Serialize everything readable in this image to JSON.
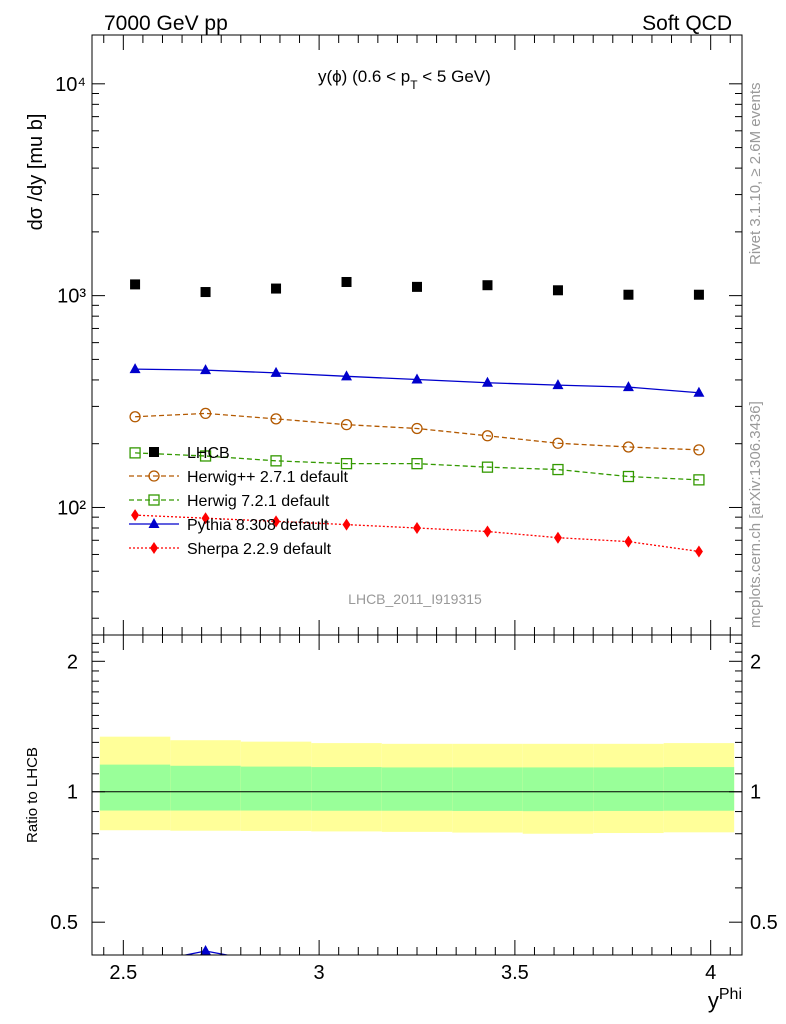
{
  "header": {
    "left": "7000 GeV pp",
    "right": "Soft QCD"
  },
  "side_labels": {
    "rivet": "Rivet 3.1.10, ≥ 2.6M events",
    "mcplots": "mcplots.cern.ch [arXiv:1306.3436]"
  },
  "chart_data": [
    {
      "type": "scatter",
      "title": "y(ϕ) (0.6 < p_T < 5 GeV)",
      "title_parts": {
        "main": "y(ϕ) (0.6 < p",
        "sub": "T",
        "tail": " < 5 GeV)"
      },
      "ylabel": "dσ /dy [mu b]",
      "yscale": "log",
      "ylim": [
        25,
        17000
      ],
      "xlim": [
        2.42,
        4.08
      ],
      "ytick_labels": [
        "10²",
        "10³",
        "10⁴"
      ],
      "analysis_id": "LHCB_2011_I919315",
      "legend_position": "center-left",
      "x": [
        2.53,
        2.71,
        2.89,
        3.07,
        3.25,
        3.43,
        3.61,
        3.79,
        3.97
      ],
      "series": [
        {
          "name": "LHCB",
          "style": "data",
          "marker": "square-filled",
          "color": "#000000",
          "values": [
            1130,
            1040,
            1080,
            1160,
            1100,
            1120,
            1060,
            1010,
            1010
          ]
        },
        {
          "name": "Herwig++ 2.7.1 default",
          "style": "dashed",
          "marker": "circle-open",
          "color": "#b35900",
          "values": [
            268,
            278,
            262,
            246,
            236,
            218,
            201,
            193,
            187
          ]
        },
        {
          "name": "Herwig 7.2.1 default",
          "style": "dashed",
          "marker": "square-open",
          "color": "#339900",
          "values": [
            181,
            175,
            166,
            161,
            161,
            155,
            151,
            140,
            135
          ]
        },
        {
          "name": "Pythia 8.308 default",
          "style": "solid",
          "marker": "triangle-filled",
          "color": "#0000cc",
          "values": [
            450,
            445,
            432,
            416,
            402,
            388,
            378,
            370,
            348
          ]
        },
        {
          "name": "Sherpa 2.2.9 default",
          "style": "dotted",
          "marker": "diamond-filled",
          "color": "#ff0000",
          "values": [
            92,
            89,
            86,
            83,
            80,
            77,
            72,
            69,
            62
          ]
        }
      ]
    },
    {
      "type": "line",
      "ylabel": "Ratio to LHCB",
      "xlabel": "y^Phi",
      "xlabel_parts": {
        "main": "y",
        "sup": "Phi"
      },
      "ylim": [
        0.42,
        2.3
      ],
      "yticks": [
        0.5,
        1,
        2
      ],
      "ytick_labels": [
        "0.5",
        "1",
        "2"
      ],
      "xticks": [
        2.5,
        3,
        3.5,
        4
      ],
      "xtick_labels": [
        "2.5",
        "3",
        "3.5",
        "4"
      ],
      "bands": {
        "inner_color": "#99ff99",
        "outer_color": "#ffff99",
        "bin_edges": [
          2.44,
          2.62,
          2.8,
          2.98,
          3.16,
          3.34,
          3.52,
          3.7,
          3.88,
          4.06
        ],
        "inner_low": [
          0.905,
          0.905,
          0.905,
          0.904,
          0.904,
          0.903,
          0.902,
          0.903,
          0.904
        ],
        "inner_high": [
          1.155,
          1.148,
          1.143,
          1.14,
          1.138,
          1.138,
          1.138,
          1.138,
          1.14
        ],
        "outer_low": [
          0.815,
          0.813,
          0.812,
          0.81,
          0.808,
          0.805,
          0.8,
          0.803,
          0.806
        ],
        "outer_high": [
          1.34,
          1.315,
          1.305,
          1.295,
          1.29,
          1.29,
          1.29,
          1.29,
          1.295
        ]
      },
      "series": [
        {
          "name": "Pythia 8.308 default",
          "color": "#0000cc",
          "x": [
            2.53,
            2.71,
            2.89
          ],
          "values": [
            0.398,
            0.429,
            0.4
          ]
        }
      ]
    }
  ]
}
